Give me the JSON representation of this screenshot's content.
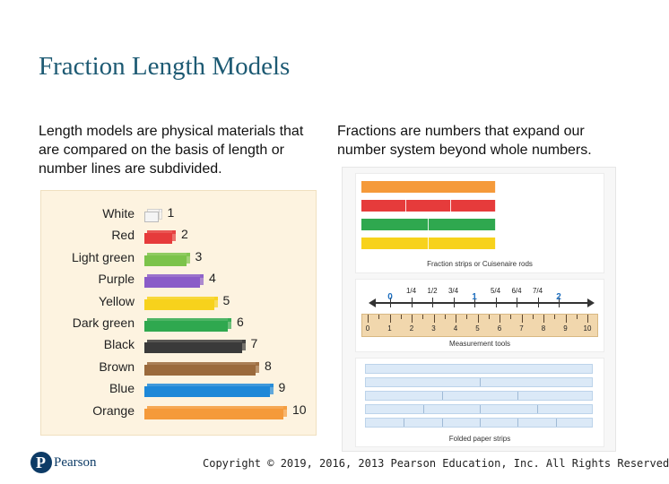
{
  "slide": {
    "title": "Fraction Length Models",
    "left_text": "Length models are physical materials that are compared on the basis of length or number lines are subdivided.",
    "right_text": "Fractions are numbers that expand our number system beyond whole numbers.",
    "copyright": "Copyright © 2019, 2016, 2013 Pearson Education, Inc. All Rights Reserved",
    "logo_text": "Pearson"
  },
  "rods": [
    {
      "name": "White",
      "length": 1,
      "color": "#f4f4f4"
    },
    {
      "name": "Red",
      "length": 2,
      "color": "#e63b3b"
    },
    {
      "name": "Light green",
      "length": 3,
      "color": "#7cc34a"
    },
    {
      "name": "Purple",
      "length": 4,
      "color": "#8a5cc8"
    },
    {
      "name": "Yellow",
      "length": 5,
      "color": "#f7d21c"
    },
    {
      "name": "Dark green",
      "length": 6,
      "color": "#2fa84f"
    },
    {
      "name": "Black",
      "length": 7,
      "color": "#3a3a3a"
    },
    {
      "name": "Brown",
      "length": 8,
      "color": "#9b6a3c"
    },
    {
      "name": "Blue",
      "length": 9,
      "color": "#1e88d8"
    },
    {
      "name": "Orange",
      "length": 10,
      "color": "#f59a3a"
    }
  ],
  "fraction_strips": {
    "caption": "Fraction strips or Cuisenaire rods",
    "strips": [
      {
        "color": "#f59a3a",
        "parts": 1
      },
      {
        "color": "#e63b3b",
        "parts": 3
      },
      {
        "color": "#2fa84f",
        "parts": 2
      },
      {
        "color": "#f7d21c",
        "parts": 2
      }
    ]
  },
  "number_line": {
    "labels": [
      "0",
      "1/4",
      "1/2",
      "3/4",
      "1",
      "5/4",
      "6/4",
      "7/4",
      "2"
    ],
    "emphasis": [
      "0",
      "1",
      "2"
    ]
  },
  "ruler": {
    "caption": "Measurement tools",
    "numbers": [
      "0",
      "1",
      "2",
      "3",
      "4",
      "5",
      "6",
      "7",
      "8",
      "9",
      "10"
    ]
  },
  "paper_strips": {
    "caption": "Folded paper strips",
    "folds": [
      1,
      2,
      3,
      4,
      6
    ]
  },
  "colors": {
    "title": "#1d5a73",
    "rods_background": "#fdf3e0",
    "ruler": "#f1d7ad"
  }
}
